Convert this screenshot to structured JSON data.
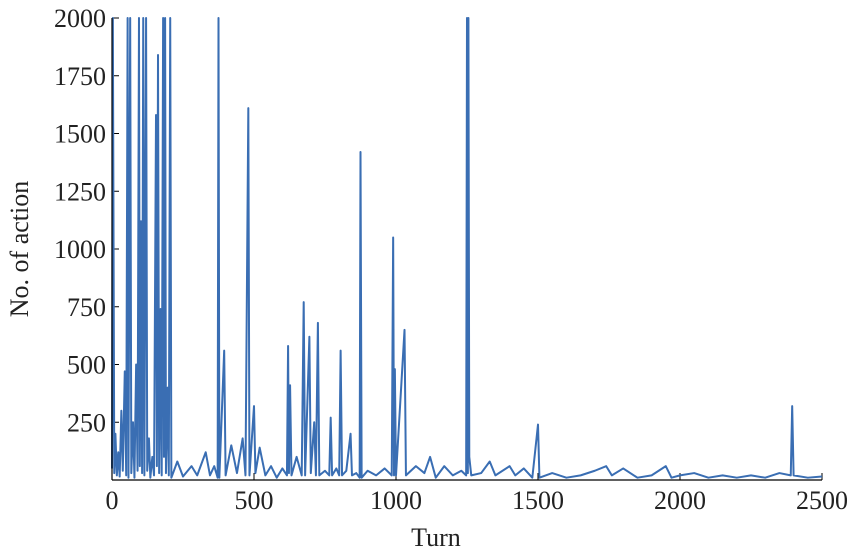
{
  "chart_data": {
    "type": "line",
    "xlabel": "Turn",
    "ylabel": "No. of action",
    "xlim": [
      0,
      2500
    ],
    "ylim": [
      0,
      2000
    ],
    "xticks": [
      0,
      500,
      1000,
      1500,
      2000,
      2500
    ],
    "yticks": [
      250,
      500,
      750,
      1000,
      1250,
      1500,
      1750,
      2000
    ],
    "grid": false,
    "series": [
      {
        "color": "#3a6eb3",
        "x": [
          0,
          3,
          8,
          12,
          17,
          22,
          27,
          33,
          38,
          45,
          50,
          55,
          58,
          64,
          68,
          74,
          79,
          85,
          90,
          95,
          98,
          102,
          106,
          110,
          114,
          120,
          124,
          130,
          135,
          142,
          148,
          155,
          158,
          162,
          166,
          171,
          175,
          180,
          183,
          187,
          190,
          196,
          200,
          205,
          209,
          230,
          250,
          280,
          300,
          330,
          345,
          360,
          372,
          375,
          378,
          395,
          400,
          420,
          440,
          460,
          470,
          480,
          484,
          500,
          505,
          520,
          540,
          560,
          580,
          600,
          616,
          620,
          623,
          627,
          632,
          650,
          668,
          675,
          680,
          695,
          700,
          712,
          718,
          725,
          730,
          750,
          765,
          770,
          775,
          790,
          800,
          805,
          810,
          825,
          840,
          845,
          860,
          872,
          875,
          879,
          900,
          930,
          960,
          985,
          990,
          993,
          996,
          1000,
          1030,
          1035,
          1070,
          1100,
          1120,
          1140,
          1170,
          1200,
          1230,
          1247,
          1250,
          1253,
          1255,
          1258,
          1265,
          1300,
          1330,
          1350,
          1400,
          1420,
          1450,
          1480,
          1500,
          1505,
          1550,
          1600,
          1650,
          1700,
          1740,
          1760,
          1800,
          1850,
          1900,
          1950,
          1970,
          2000,
          2050,
          2100,
          2150,
          2200,
          2250,
          2300,
          2350,
          2390,
          2395,
          2400,
          2450,
          2500
        ],
        "values": [
          50,
          2000,
          30,
          200,
          20,
          120,
          15,
          300,
          40,
          470,
          20,
          2000,
          10,
          2000,
          30,
          250,
          10,
          500,
          40,
          2000,
          60,
          1120,
          30,
          2000,
          20,
          2000,
          40,
          180,
          10,
          100,
          20,
          1580,
          60,
          1840,
          30,
          740,
          20,
          2000,
          100,
          2000,
          30,
          400,
          20,
          2000,
          10,
          80,
          15,
          60,
          20,
          120,
          20,
          60,
          10,
          2000,
          10,
          560,
          20,
          150,
          30,
          180,
          20,
          1610,
          20,
          320,
          30,
          140,
          20,
          60,
          10,
          50,
          20,
          580,
          30,
          410,
          20,
          100,
          20,
          770,
          20,
          620,
          30,
          250,
          20,
          680,
          20,
          40,
          20,
          270,
          20,
          50,
          20,
          560,
          20,
          40,
          200,
          20,
          30,
          10,
          1420,
          10,
          40,
          20,
          50,
          20,
          1050,
          20,
          480,
          20,
          650,
          20,
          60,
          30,
          100,
          10,
          60,
          20,
          40,
          20,
          2000,
          30,
          2000,
          100,
          20,
          30,
          80,
          20,
          60,
          20,
          50,
          10,
          240,
          10,
          30,
          10,
          20,
          40,
          60,
          20,
          50,
          10,
          20,
          60,
          10,
          20,
          30,
          10,
          20,
          10,
          20,
          10,
          30,
          20,
          320,
          20,
          10,
          15
        ]
      }
    ]
  }
}
